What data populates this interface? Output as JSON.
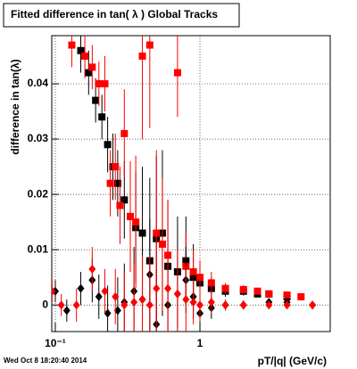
{
  "chart_data": {
    "type": "scatter",
    "title": "Fitted difference in tan( λ )  Global Tracks",
    "ylabel": "difference in tan(λ)",
    "xlabel": "pT/|q| (GeV/c)",
    "footer": "Wed Oct  8 18:20:40 2014",
    "log_x": true,
    "grid": true,
    "xlim": [
      0.0945,
      7.96
    ],
    "xticks": [
      {
        "value": 0.1,
        "label": "10⁻¹"
      },
      1
    ],
    "ylim": [
      -0.0048,
      0.0487
    ],
    "yticks": [
      0,
      0.01,
      0.02,
      0.03,
      0.04
    ],
    "series": [
      {
        "color": "#000000",
        "marker": "square",
        "x": [
          0.15,
          0.17,
          0.19,
          0.21,
          0.23,
          0.25,
          0.27,
          0.3,
          0.33,
          0.36,
          0.4,
          0.45,
          0.5,
          0.55,
          0.6,
          0.7,
          0.8,
          0.9,
          1.0,
          1.2,
          1.5,
          2,
          2.5,
          3,
          4
        ],
        "values": [
          0.046,
          0.042,
          0.037,
          0.034,
          0.029,
          0.025,
          0.022,
          0.019,
          0.016,
          0.014,
          0.013,
          0.008,
          0.012,
          0.013,
          0.007,
          0.006,
          0.008,
          0.005,
          0.004,
          0.003,
          0.0025,
          0.0025,
          0.002,
          0.002,
          0.0015
        ],
        "errors": [
          0.004,
          0.004,
          0.004,
          0.004,
          0.005,
          0.006,
          0.006,
          0.007,
          0.008,
          0.01,
          0.012,
          0.015,
          0.015,
          0.015,
          0.012,
          0.01,
          0.008,
          0.006,
          0.004,
          0.002,
          0.001,
          0.0008,
          0.0006,
          0.0006,
          0.0006
        ]
      },
      {
        "color": "#ff0000",
        "marker": "square",
        "x": [
          0.13,
          0.16,
          0.18,
          0.2,
          0.22,
          0.24,
          0.26,
          0.28,
          0.3,
          0.33,
          0.36,
          0.4,
          0.45,
          0.5,
          0.55,
          0.6,
          0.7,
          0.8,
          0.9,
          1.0,
          1.2,
          1.5,
          2,
          2.5,
          3,
          4,
          5
        ],
        "values": [
          0.047,
          0.045,
          0.043,
          0.04,
          0.04,
          0.022,
          0.025,
          0.018,
          0.031,
          0.016,
          0.015,
          0.045,
          0.047,
          0.013,
          0.011,
          0.009,
          0.042,
          0.007,
          0.006,
          0.005,
          0.004,
          0.003,
          0.0028,
          0.0025,
          0.002,
          0.0018,
          0.0015
        ],
        "errors": [
          0.004,
          0.004,
          0.004,
          0.004,
          0.005,
          0.006,
          0.006,
          0.007,
          0.008,
          0.01,
          0.012,
          0.015,
          0.015,
          0.015,
          0.012,
          0.01,
          0.008,
          0.006,
          0.004,
          0.003,
          0.002,
          0.001,
          0.0008,
          0.0006,
          0.0006,
          0.0006,
          0.0006
        ]
      },
      {
        "color": "#000000",
        "marker": "diamond",
        "x": [
          0.1,
          0.12,
          0.15,
          0.18,
          0.2,
          0.23,
          0.27,
          0.3,
          0.35,
          0.4,
          0.45,
          0.5,
          0.6,
          0.7,
          0.8,
          0.9,
          1.0,
          1.2,
          1.5,
          2,
          3,
          4,
          6
        ],
        "values": [
          0.0025,
          -0.001,
          0.003,
          0.0045,
          0.0015,
          -0.0015,
          -0.001,
          0.0005,
          0.0025,
          0.001,
          0.0055,
          -0.0035,
          0,
          0.002,
          0.0045,
          0.0015,
          -0.0015,
          -0.0005,
          0,
          0,
          0.0005,
          0.0005,
          0
        ],
        "errors": [
          0.002,
          0.002,
          0.003,
          0.004,
          0.004,
          0.005,
          0.006,
          0.007,
          0.008,
          0.009,
          0.01,
          0.01,
          0.009,
          0.008,
          0.006,
          0.004,
          0.003,
          0.002,
          0.001,
          0.0008,
          0.0006,
          0.0006,
          0.0005
        ]
      },
      {
        "color": "#ff0000",
        "marker": "diamond",
        "x": [
          0.095,
          0.11,
          0.14,
          0.18,
          0.22,
          0.26,
          0.3,
          0.35,
          0.4,
          0.45,
          0.5,
          0.6,
          0.7,
          0.8,
          0.9,
          1.0,
          1.2,
          1.5,
          2,
          3,
          4,
          6
        ],
        "values": [
          0.0025,
          0,
          0,
          0.0065,
          0.0025,
          0.0015,
          0,
          0.0005,
          0.001,
          0,
          0.003,
          0.003,
          0.002,
          0.001,
          0.0005,
          0,
          0.0005,
          0,
          0,
          0,
          0,
          0
        ],
        "errors": [
          0.002,
          0.002,
          0.003,
          0.004,
          0.004,
          0.005,
          0.006,
          0.007,
          0.008,
          0.009,
          0.01,
          0.009,
          0.008,
          0.006,
          0.004,
          0.003,
          0.002,
          0.001,
          0.0008,
          0.0006,
          0.0006,
          0.0005
        ]
      }
    ]
  }
}
